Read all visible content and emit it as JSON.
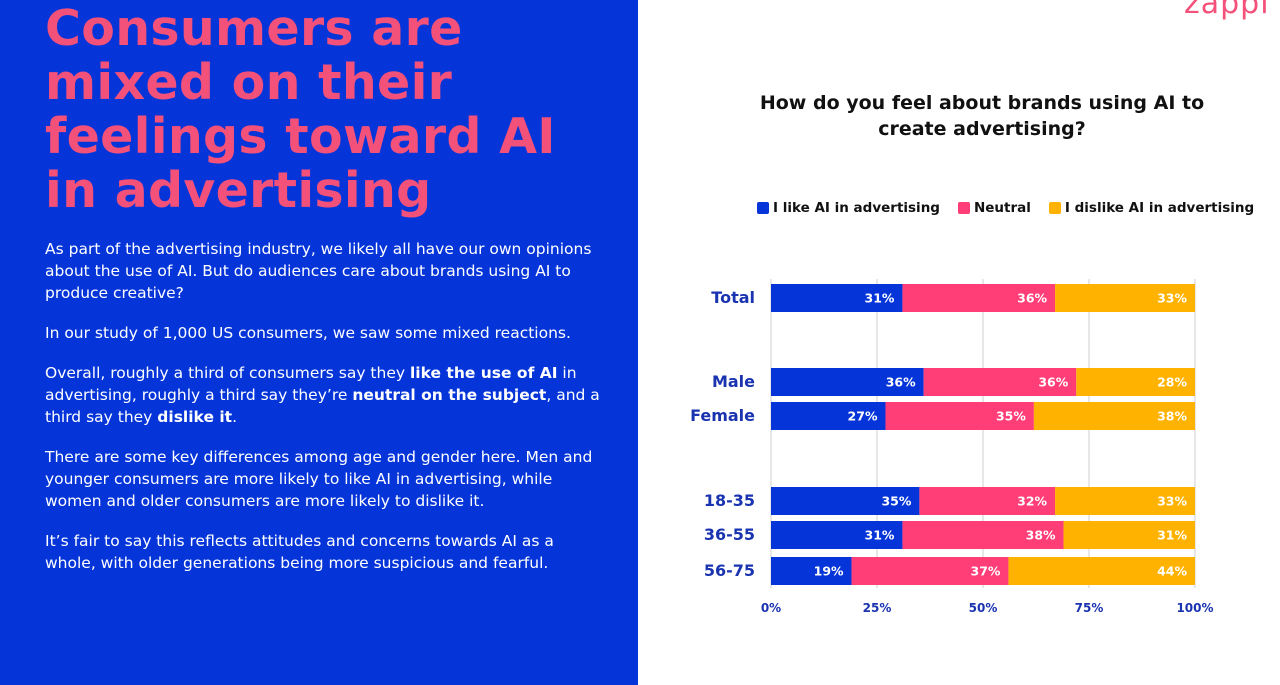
{
  "headline": "Consumers are mixed on their feelings toward AI in advertising",
  "body": {
    "p1": "As part of the advertising industry, we likely all have our own opinions about the use of AI. But do audiences care about brands using AI to produce creative?",
    "p2": "In our study of 1,000 US consumers, we saw some mixed reactions.",
    "p3_a": "Overall, roughly a third of consumers say they ",
    "p3_b": "like the use of AI",
    "p3_c": " in advertising, roughly a third say they’re ",
    "p3_d": "neutral on the subject",
    "p3_e": ", and a third say they ",
    "p3_f": "dislike it",
    "p3_g": ".",
    "p4": "There are some key differences among age and gender here. Men and younger consumers are more likely to like AI in advertising, while women and older consumers are more likely to dislike it.",
    "p5": "It’s fair to say this reflects attitudes and concerns towards AI as a whole, with older generations being more suspicious and fearful."
  },
  "logo_text": "zappi",
  "colors": {
    "panel_bg": "#0535d9",
    "accent_pink": "#f4517a",
    "like": "#0535d9",
    "neutral": "#ff3d77",
    "dislike": "#ffb300",
    "grid": "#cfcfcf"
  },
  "chart_data": {
    "type": "bar",
    "orientation": "horizontal",
    "stacked": true,
    "title": "How do you feel about brands using AI to create advertising?",
    "categories": [
      "Total",
      "Male",
      "Female",
      "18-35",
      "36-55",
      "56-75"
    ],
    "series": [
      {
        "name": "I like AI in advertising",
        "values": [
          31,
          36,
          27,
          35,
          31,
          19
        ]
      },
      {
        "name": "Neutral",
        "values": [
          36,
          36,
          35,
          32,
          38,
          37
        ]
      },
      {
        "name": "I dislike AI in advertising",
        "values": [
          33,
          28,
          38,
          33,
          31,
          44
        ]
      }
    ],
    "xlim": [
      0,
      100
    ],
    "xticks": [
      "0%",
      "25%",
      "50%",
      "75%",
      "100%"
    ],
    "legend_position": "top",
    "grid": true
  }
}
